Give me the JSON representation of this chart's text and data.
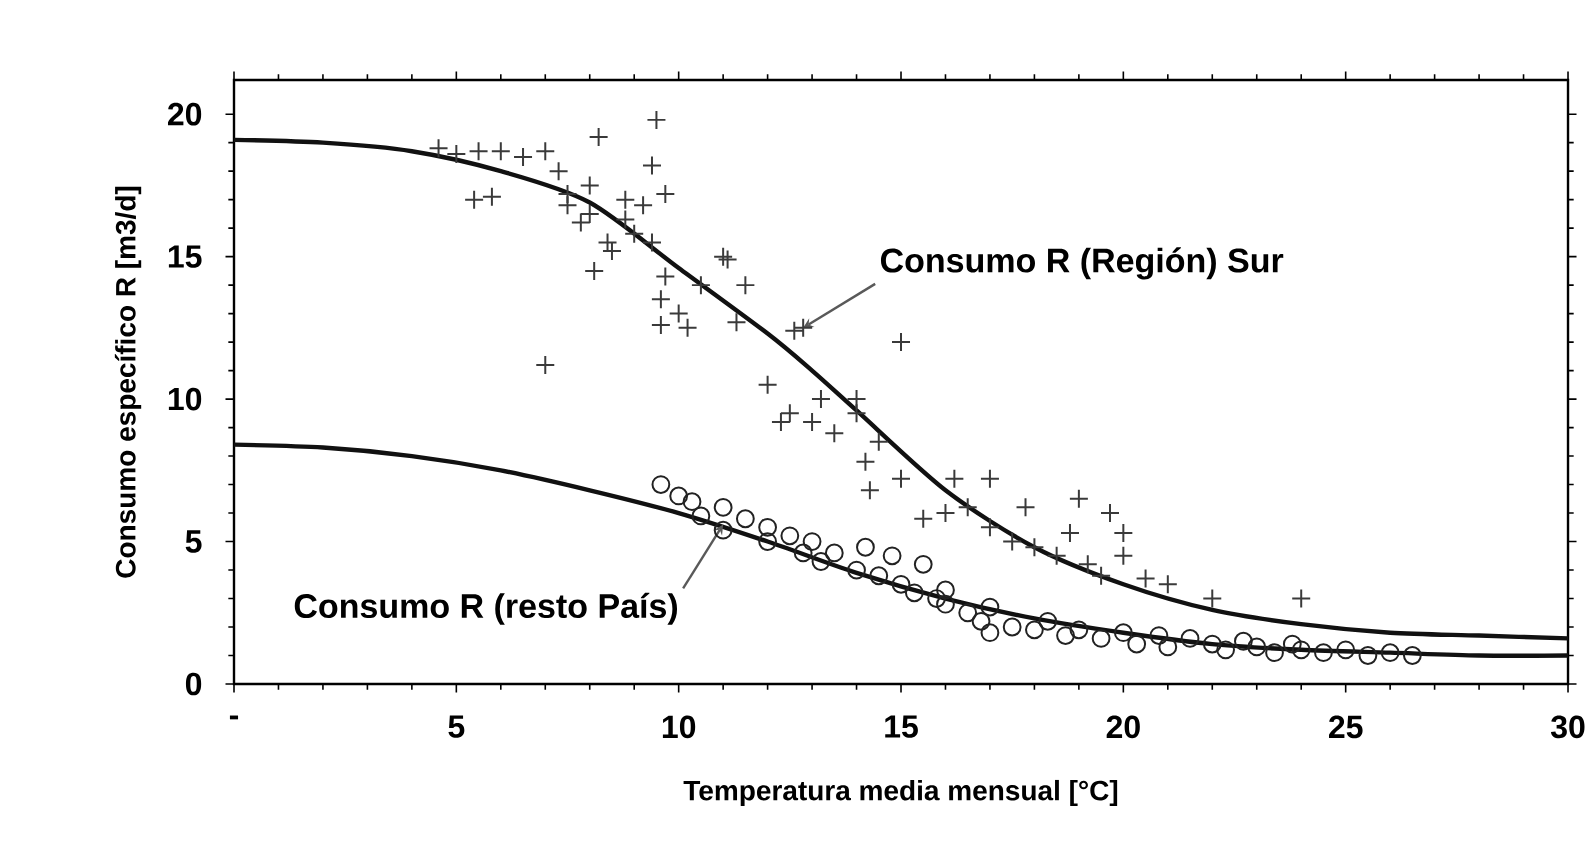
{
  "chart_data": {
    "type": "scatter",
    "xlabel": "Temperatura media  mensual [°C]",
    "ylabel": "Consumo específico R  [m3/d]",
    "xlim": [
      0,
      30
    ],
    "ylim": [
      0,
      21.2
    ],
    "xticks": [
      {
        "value": 0,
        "label": "-"
      },
      5,
      10,
      15,
      20,
      25,
      30
    ],
    "yticks": [
      0,
      5,
      10,
      15,
      20
    ],
    "grid": false,
    "series": [
      {
        "marker": "cross",
        "color": "#3a3a3a",
        "x": [
          4.6,
          5,
          5.4,
          5.5,
          5.8,
          6,
          6.5,
          7,
          7,
          7.3,
          7.5,
          7.5,
          7.8,
          8,
          8,
          8.1,
          8.2,
          8.4,
          8.5,
          8.8,
          8.8,
          9,
          9.2,
          9.4,
          9.4,
          9.5,
          9.6,
          9.6,
          9.7,
          9.7,
          10,
          10.2,
          10.5,
          11,
          11.1,
          11.3,
          11.5,
          12,
          12.3,
          12.5,
          12.6,
          12.8,
          13,
          13.2,
          13.5,
          14,
          14,
          14.2,
          14.3,
          14.5,
          15,
          15,
          15.5,
          16,
          16.2,
          16.5,
          17,
          17,
          17.5,
          17.8,
          18,
          18.5,
          18.8,
          19,
          19.2,
          19.5,
          19.7,
          20,
          20,
          20.5,
          21,
          22,
          24
        ],
        "values": [
          18.8,
          18.6,
          17,
          18.7,
          17.1,
          18.7,
          18.5,
          18.7,
          11.2,
          18,
          17.2,
          16.8,
          16.2,
          17.5,
          16.5,
          14.5,
          19.2,
          15.5,
          15.2,
          16.3,
          17,
          15.8,
          16.8,
          15.5,
          18.2,
          19.8,
          12.6,
          13.5,
          14.3,
          17.2,
          13,
          12.5,
          14,
          15,
          14.9,
          12.7,
          14,
          10.5,
          9.2,
          9.5,
          12.4,
          12.5,
          9.2,
          10,
          8.8,
          9.5,
          10,
          7.8,
          6.8,
          8.5,
          12,
          7.2,
          5.8,
          6,
          7.2,
          6.2,
          7.2,
          5.5,
          5,
          6.2,
          4.8,
          4.5,
          5.3,
          6.5,
          4.2,
          3.8,
          6,
          5.3,
          4.5,
          3.7,
          3.5,
          3,
          3
        ]
      },
      {
        "type": "line",
        "marker": "none",
        "line_style": "solid",
        "color": "#111111",
        "x": [
          0,
          2,
          4,
          6,
          8,
          10,
          12,
          13,
          14,
          16,
          18,
          20,
          22,
          24,
          26,
          28,
          30
        ],
        "values": [
          19.1,
          19,
          18.7,
          18,
          16.9,
          14.6,
          12.3,
          11,
          9.6,
          6.8,
          4.8,
          3.5,
          2.6,
          2.1,
          1.8,
          1.7,
          1.6
        ]
      },
      {
        "marker": "circle",
        "color": "#222222",
        "x": [
          9.6,
          10,
          10.3,
          10.5,
          11,
          11,
          11.5,
          12,
          12,
          12.5,
          12.8,
          13,
          13.2,
          13.5,
          14,
          14.2,
          14.5,
          14.8,
          15,
          15.3,
          15.5,
          15.8,
          16,
          16,
          16.5,
          16.8,
          17,
          17,
          17.5,
          18,
          18.3,
          18.7,
          19,
          19.5,
          20,
          20.3,
          20.8,
          21,
          21.5,
          22,
          22.3,
          22.7,
          23,
          23.4,
          23.8,
          24,
          24.5,
          25,
          25.5,
          26,
          26.5
        ],
        "values": [
          7,
          6.6,
          6.4,
          5.9,
          6.2,
          5.4,
          5.8,
          5.5,
          5,
          5.2,
          4.6,
          5,
          4.3,
          4.6,
          4,
          4.8,
          3.8,
          4.5,
          3.5,
          3.2,
          4.2,
          3,
          3.3,
          2.8,
          2.5,
          2.2,
          1.8,
          2.7,
          2,
          1.9,
          2.2,
          1.7,
          1.9,
          1.6,
          1.8,
          1.4,
          1.7,
          1.3,
          1.6,
          1.4,
          1.2,
          1.5,
          1.3,
          1.1,
          1.4,
          1.2,
          1.1,
          1.2,
          1,
          1.1,
          1
        ]
      },
      {
        "type": "line",
        "marker": "none",
        "line_style": "solid",
        "color": "#111111",
        "x": [
          0,
          2,
          4,
          6,
          8,
          10,
          12,
          14,
          16,
          18,
          20,
          22,
          24,
          26,
          28,
          30
        ],
        "values": [
          8.4,
          8.3,
          8,
          7.5,
          6.8,
          6,
          5,
          3.9,
          3,
          2.3,
          1.8,
          1.4,
          1.2,
          1.1,
          1,
          1
        ]
      }
    ],
    "annotations": [
      {
        "text": "Consumo R (Región) Sur",
        "x": 12.8,
        "y": 12.5
      },
      {
        "text": "Consumo R (resto País)",
        "x": 11,
        "y": 5.6
      }
    ]
  }
}
